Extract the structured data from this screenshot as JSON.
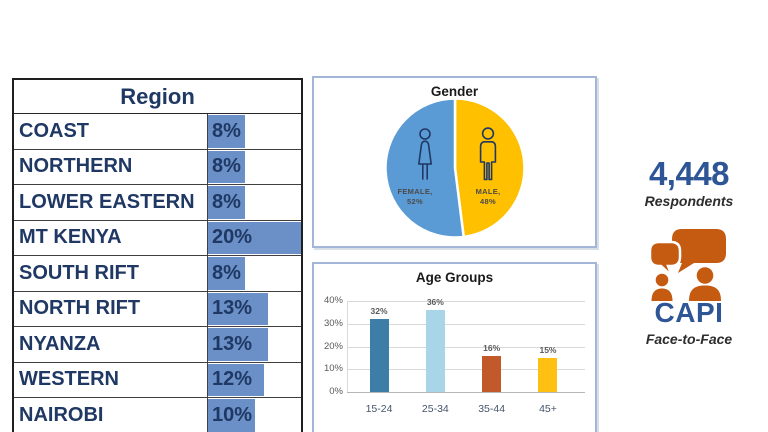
{
  "chart_data": [
    {
      "id": "region-distribution",
      "type": "table",
      "title": "Region",
      "categories": [
        "COAST",
        "NORTHERN",
        "LOWER EASTERN",
        "MT KENYA",
        "SOUTH RIFT",
        "NORTH RIFT",
        "NYANZA",
        "WESTERN",
        "NAIROBI"
      ],
      "values": [
        8,
        8,
        8,
        20,
        8,
        13,
        13,
        12,
        10
      ],
      "value_labels": [
        "8%",
        "8%",
        "8%",
        "20%",
        "8%",
        "13%",
        "13%",
        "12%",
        "10%"
      ],
      "unit": "%",
      "databar_max": 20,
      "databar_color": "#6A90C7",
      "text_color": "#1F3864"
    },
    {
      "id": "gender",
      "type": "pie",
      "title": "Gender",
      "slices": [
        {
          "name": "MALE",
          "value": 48,
          "label_line1": "MALE,",
          "label_line2": "48%",
          "color": "#FFC000"
        },
        {
          "name": "FEMALE",
          "value": 52,
          "label_line1": "FEMALE,",
          "label_line2": "52%",
          "color": "#5B9BD5"
        }
      ],
      "start_angle_deg": 0,
      "direction": "clockwise-from-top",
      "legend_position": "none"
    },
    {
      "id": "age-groups",
      "type": "bar",
      "title": "Age Groups",
      "categories": [
        "15-24",
        "25-34",
        "35-44",
        "45+"
      ],
      "values": [
        32,
        36,
        16,
        15
      ],
      "value_labels": [
        "32%",
        "36%",
        "16%",
        "15%"
      ],
      "colors": [
        "#3D7EA8",
        "#A8D6E8",
        "#C2592B",
        "#FDC013"
      ],
      "ylim": [
        0,
        40
      ],
      "yticks": [
        0,
        10,
        20,
        30,
        40
      ],
      "ytick_labels": [
        "0%",
        "10%",
        "20%",
        "30%",
        "40%"
      ],
      "grid": true
    }
  ],
  "respondents": {
    "value": "4,448",
    "label": "Respondents"
  },
  "method": {
    "name": "CAPI",
    "label": "Face-to-Face"
  },
  "icons": {
    "female": "female-figure-icon",
    "male": "male-figure-icon",
    "method": "speech-bubbles-people-icon"
  },
  "colors": {
    "accent_blue": "#2E5697",
    "icon_orange": "#C55A11",
    "panel_border": "#A4B6D7",
    "table_text": "#1F3864",
    "pie_female": "#5B9BD5",
    "pie_male": "#FFC000"
  }
}
